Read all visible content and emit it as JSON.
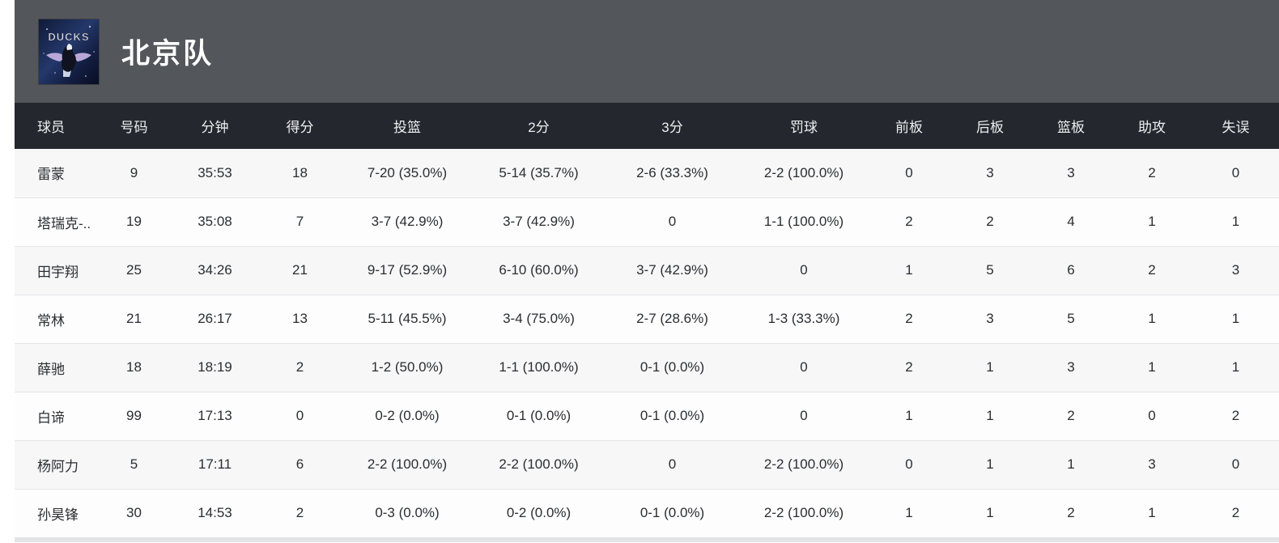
{
  "header": {
    "team_name": "北京队",
    "logo_text": "DUCKS",
    "banner_color": "#53565a",
    "table_header_color": "#24272e"
  },
  "table": {
    "columns": [
      {
        "key": "player",
        "label": "球员"
      },
      {
        "key": "number",
        "label": "号码"
      },
      {
        "key": "minutes",
        "label": "分钟"
      },
      {
        "key": "points",
        "label": "得分"
      },
      {
        "key": "fg",
        "label": "投篮"
      },
      {
        "key": "two",
        "label": "2分"
      },
      {
        "key": "three",
        "label": "3分"
      },
      {
        "key": "ft",
        "label": "罚球"
      },
      {
        "key": "oreb",
        "label": "前板"
      },
      {
        "key": "dreb",
        "label": "后板"
      },
      {
        "key": "reb",
        "label": "篮板"
      },
      {
        "key": "ast",
        "label": "助攻"
      },
      {
        "key": "tov",
        "label": "失误"
      }
    ],
    "rows": [
      {
        "player": "雷蒙",
        "number": "9",
        "minutes": "35:53",
        "points": "18",
        "fg": "7-20 (35.0%)",
        "two": "5-14 (35.7%)",
        "three": "2-6 (33.3%)",
        "ft": "2-2 (100.0%)",
        "oreb": "0",
        "dreb": "3",
        "reb": "3",
        "ast": "2",
        "tov": "0"
      },
      {
        "player": "塔瑞克-..",
        "number": "19",
        "minutes": "35:08",
        "points": "7",
        "fg": "3-7 (42.9%)",
        "two": "3-7 (42.9%)",
        "three": "0",
        "ft": "1-1 (100.0%)",
        "oreb": "2",
        "dreb": "2",
        "reb": "4",
        "ast": "1",
        "tov": "1"
      },
      {
        "player": "田宇翔",
        "number": "25",
        "minutes": "34:26",
        "points": "21",
        "fg": "9-17 (52.9%)",
        "two": "6-10 (60.0%)",
        "three": "3-7 (42.9%)",
        "ft": "0",
        "oreb": "1",
        "dreb": "5",
        "reb": "6",
        "ast": "2",
        "tov": "3"
      },
      {
        "player": "常林",
        "number": "21",
        "minutes": "26:17",
        "points": "13",
        "fg": "5-11 (45.5%)",
        "two": "3-4 (75.0%)",
        "three": "2-7 (28.6%)",
        "ft": "1-3 (33.3%)",
        "oreb": "2",
        "dreb": "3",
        "reb": "5",
        "ast": "1",
        "tov": "1"
      },
      {
        "player": "薛驰",
        "number": "18",
        "minutes": "18:19",
        "points": "2",
        "fg": "1-2 (50.0%)",
        "two": "1-1 (100.0%)",
        "three": "0-1 (0.0%)",
        "ft": "0",
        "oreb": "2",
        "dreb": "1",
        "reb": "3",
        "ast": "1",
        "tov": "1"
      },
      {
        "player": "白谛",
        "number": "99",
        "minutes": "17:13",
        "points": "0",
        "fg": "0-2 (0.0%)",
        "two": "0-1 (0.0%)",
        "three": "0-1 (0.0%)",
        "ft": "0",
        "oreb": "1",
        "dreb": "1",
        "reb": "2",
        "ast": "0",
        "tov": "2"
      },
      {
        "player": "杨阿力",
        "number": "5",
        "minutes": "17:11",
        "points": "6",
        "fg": "2-2 (100.0%)",
        "two": "2-2 (100.0%)",
        "three": "0",
        "ft": "2-2 (100.0%)",
        "oreb": "0",
        "dreb": "1",
        "reb": "1",
        "ast": "3",
        "tov": "0"
      },
      {
        "player": "孙昊锋",
        "number": "30",
        "minutes": "14:53",
        "points": "2",
        "fg": "0-3 (0.0%)",
        "two": "0-2 (0.0%)",
        "three": "0-1 (0.0%)",
        "ft": "2-2 (100.0%)",
        "oreb": "1",
        "dreb": "1",
        "reb": "2",
        "ast": "1",
        "tov": "2"
      }
    ]
  }
}
